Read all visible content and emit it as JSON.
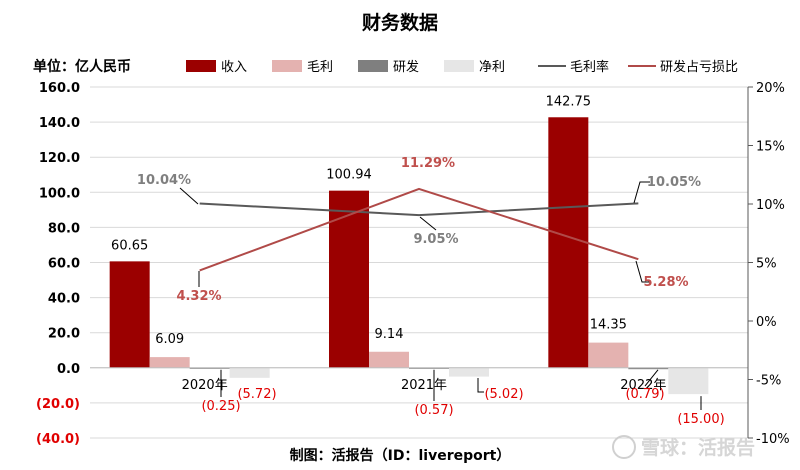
{
  "chart_data": {
    "type": "bar",
    "title": "财务数据",
    "unit_label": "单位：亿人民币",
    "footer": "制图：活报告（ID：livereport）",
    "watermark": "雪球：活报告",
    "categories": [
      "2020年",
      "2021年",
      "2022年"
    ],
    "y_left": {
      "range": [
        -40,
        160
      ],
      "ticks": [
        "160.0",
        "140.0",
        "120.0",
        "100.0",
        "80.0",
        "60.0",
        "40.0",
        "20.0",
        "0.0",
        "(20.0)",
        "(40.0)"
      ],
      "tick_values": [
        160,
        140,
        120,
        100,
        80,
        60,
        40,
        20,
        0,
        -20,
        -40
      ]
    },
    "y_right": {
      "range": [
        -0.1,
        0.2
      ],
      "ticks": [
        "20%",
        "15%",
        "10%",
        "5%",
        "0%",
        "-5%",
        "-10%"
      ],
      "tick_values": [
        0.2,
        0.15,
        0.1,
        0.05,
        0.0,
        -0.05,
        -0.1
      ]
    },
    "gridlines": true,
    "legend_position": "top",
    "legend": [
      "收入",
      "毛利",
      "研发",
      "净利",
      "毛利率",
      "研发占亏损比"
    ],
    "series": [
      {
        "name": "收入",
        "kind": "bar",
        "axis": "left",
        "color": "#9b0000",
        "values": [
          60.65,
          100.94,
          142.75
        ],
        "labels": [
          "60.65",
          "100.94",
          "142.75"
        ]
      },
      {
        "name": "毛利",
        "kind": "bar",
        "axis": "left",
        "color": "#e4b2b0",
        "values": [
          6.09,
          9.14,
          14.35
        ],
        "labels": [
          "6.09",
          "9.14",
          "14.35"
        ]
      },
      {
        "name": "研发",
        "kind": "bar",
        "axis": "left",
        "color": "#7f7f7f",
        "values": [
          -0.25,
          -0.57,
          -0.79
        ],
        "labels": [
          "(0.25)",
          "(0.57)",
          "(0.79)"
        ]
      },
      {
        "name": "净利",
        "kind": "bar",
        "axis": "left",
        "color": "#e6e6e6",
        "values": [
          -5.72,
          -5.02,
          -15.0
        ],
        "labels": [
          "(5.72)",
          "(5.02)",
          "(15.00)"
        ]
      },
      {
        "name": "毛利率",
        "kind": "line",
        "axis": "right",
        "color": "#595959",
        "values": [
          0.1004,
          0.0905,
          0.1005
        ],
        "labels": [
          "10.04%",
          "9.05%",
          "10.05%"
        ]
      },
      {
        "name": "研发占亏损比",
        "kind": "line",
        "axis": "right",
        "color": "#b04a48",
        "values": [
          0.0432,
          0.1129,
          0.0528
        ],
        "labels": [
          "4.32%",
          "11.29%",
          "5.28%"
        ]
      }
    ],
    "negative_label_color": "#e00000"
  }
}
